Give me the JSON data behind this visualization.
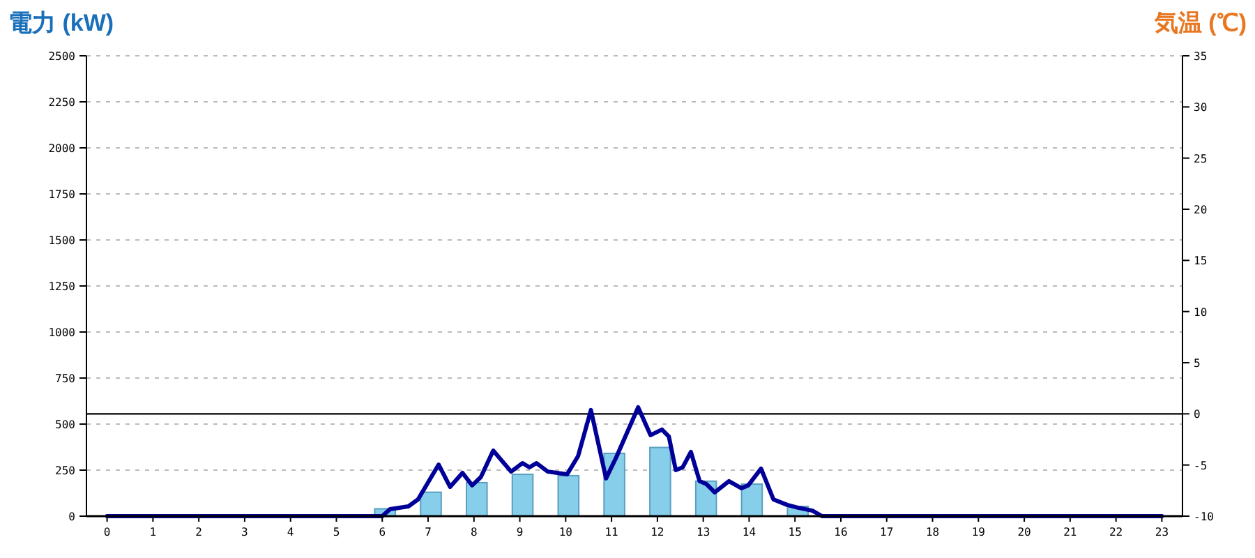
{
  "chart_data": {
    "type": "bar",
    "ylabel": "電力 (kW)",
    "y2label": "気温 (℃)",
    "x": [
      0,
      1,
      2,
      3,
      4,
      5,
      6,
      7,
      8,
      9,
      10,
      11,
      12,
      13,
      14,
      15,
      16,
      17,
      18,
      19,
      20,
      21,
      22,
      23
    ],
    "xlim": [
      -0.45,
      23.45
    ],
    "xticks": [
      0,
      1,
      2,
      3,
      4,
      5,
      6,
      7,
      8,
      9,
      10,
      11,
      12,
      13,
      14,
      15,
      16,
      17,
      18,
      19,
      20,
      21,
      22,
      23
    ],
    "series": [
      {
        "color": "#87ceeb",
        "values": [
          0,
          0,
          0,
          0,
          0,
          0,
          40,
          130,
          182,
          227,
          220,
          341,
          373,
          190,
          174,
          53,
          0,
          0,
          0,
          0,
          0,
          0,
          0,
          0
        ]
      },
      {
        "type": "line",
        "color": "#000099",
        "x": [
          0,
          6.0,
          6.17,
          6.57,
          6.78,
          7.23,
          7.48,
          7.75,
          7.96,
          8.15,
          8.42,
          8.81,
          9.06,
          9.21,
          9.36,
          9.61,
          10.03,
          10.27,
          10.55,
          10.88,
          11.1,
          11.58,
          11.85,
          12.1,
          12.25,
          12.4,
          12.55,
          12.73,
          12.92,
          13.07,
          13.25,
          13.56,
          13.83,
          13.98,
          14.26,
          14.53,
          14.83,
          15.08,
          15.38,
          15.59,
          23
        ],
        "values": [
          0,
          0,
          38,
          53,
          91,
          280,
          159,
          235,
          167,
          212,
          356,
          242,
          288,
          265,
          288,
          242,
          227,
          326,
          576,
          205,
          318,
          591,
          440,
          470,
          432,
          250,
          265,
          349,
          190,
          174,
          129,
          190,
          152,
          167,
          258,
          91,
          61,
          45,
          30,
          0,
          0
        ]
      }
    ],
    "ylim": [
      0,
      2500
    ],
    "yticks": [
      0,
      250,
      500,
      750,
      1000,
      1250,
      1500,
      1750,
      2000,
      2250,
      2500
    ],
    "y2lim": [
      -10,
      35
    ],
    "y2ticks": [
      -10,
      -5,
      0,
      5,
      10,
      15,
      20,
      25,
      30,
      35
    ],
    "ref_lines": [
      {
        "axis": "y2",
        "value": 0,
        "color": "#000000"
      }
    ],
    "grid": "y"
  }
}
